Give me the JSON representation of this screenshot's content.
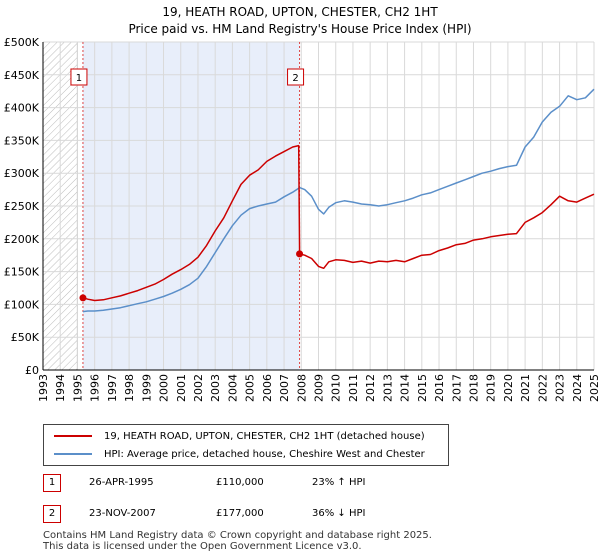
{
  "chart_data": {
    "type": "line",
    "title": "19, HEATH ROAD, UPTON, CHESTER, CH2 1HT",
    "subtitle": "Price paid vs. HM Land Registry's House Price Index (HPI)",
    "xlabel": "",
    "ylabel": "",
    "xlim": [
      1993,
      2025
    ],
    "ylim": [
      0,
      500000
    ],
    "x_tick_labels": [
      "1993",
      "1994",
      "1995",
      "1996",
      "1997",
      "1998",
      "1999",
      "2000",
      "2001",
      "2002",
      "2003",
      "2004",
      "2005",
      "2006",
      "2007",
      "2008",
      "2009",
      "2010",
      "2011",
      "2012",
      "2013",
      "2014",
      "2015",
      "2016",
      "2017",
      "2018",
      "2019",
      "2020",
      "2021",
      "2022",
      "2023",
      "2024",
      "2025"
    ],
    "y_ticks": [
      {
        "value": 0,
        "label": "£0"
      },
      {
        "value": 50000,
        "label": "£50K"
      },
      {
        "value": 100000,
        "label": "£100K"
      },
      {
        "value": 150000,
        "label": "£150K"
      },
      {
        "value": 200000,
        "label": "£200K"
      },
      {
        "value": 250000,
        "label": "£250K"
      },
      {
        "value": 300000,
        "label": "£300K"
      },
      {
        "value": 350000,
        "label": "£350K"
      },
      {
        "value": 400000,
        "label": "£400K"
      },
      {
        "value": 450000,
        "label": "£450K"
      },
      {
        "value": 500000,
        "label": "£500K"
      }
    ],
    "grid": true,
    "hatched_before": 1995.0,
    "shaded_range": [
      1995.32,
      2007.9
    ],
    "series": [
      {
        "name": "19, HEATH ROAD, UPTON, CHESTER, CH2 1HT (detached house)",
        "color": "#cc0000",
        "x": [
          1995.32,
          1995.6,
          1996.0,
          1996.5,
          1997.0,
          1997.5,
          1998.0,
          1998.5,
          1999.0,
          1999.5,
          2000.0,
          2000.5,
          2001.0,
          2001.5,
          2002.0,
          2002.5,
          2003.0,
          2003.5,
          2004.0,
          2004.5,
          2005.0,
          2005.5,
          2006.0,
          2006.5,
          2007.0,
          2007.5,
          2007.85,
          2007.9,
          2008.2,
          2008.6,
          2009.0,
          2009.3,
          2009.6,
          2010.0,
          2010.5,
          2011.0,
          2011.5,
          2012.0,
          2012.5,
          2013.0,
          2013.5,
          2014.0,
          2014.5,
          2015.0,
          2015.5,
          2016.0,
          2016.5,
          2017.0,
          2017.5,
          2018.0,
          2018.5,
          2019.0,
          2019.5,
          2020.0,
          2020.5,
          2021.0,
          2021.5,
          2022.0,
          2022.5,
          2023.0,
          2023.5,
          2024.0,
          2024.5,
          2025.0
        ],
        "values": [
          110000,
          108000,
          106000,
          107000,
          110000,
          113000,
          117000,
          121000,
          126000,
          131000,
          138000,
          146000,
          153000,
          161000,
          172000,
          190000,
          212000,
          232000,
          258000,
          283000,
          297000,
          305000,
          318000,
          326000,
          333000,
          340000,
          342000,
          177000,
          175000,
          170000,
          158000,
          155000,
          165000,
          168000,
          167000,
          164000,
          166000,
          163000,
          166000,
          165000,
          167000,
          165000,
          170000,
          175000,
          176000,
          182000,
          186000,
          191000,
          193000,
          198000,
          200000,
          203000,
          205000,
          207000,
          208000,
          225000,
          232000,
          240000,
          252000,
          265000,
          258000,
          256000,
          262000,
          268000
        ]
      },
      {
        "name": "HPI: Average price, detached house, Cheshire West and Chester",
        "color": "#5b8fc9",
        "x": [
          1995.32,
          1995.6,
          1996.0,
          1996.5,
          1997.0,
          1997.5,
          1998.0,
          1998.5,
          1999.0,
          1999.5,
          2000.0,
          2000.5,
          2001.0,
          2001.5,
          2002.0,
          2002.5,
          2003.0,
          2003.5,
          2004.0,
          2004.5,
          2005.0,
          2005.5,
          2006.0,
          2006.5,
          2007.0,
          2007.5,
          2007.9,
          2008.2,
          2008.6,
          2009.0,
          2009.3,
          2009.6,
          2010.0,
          2010.5,
          2011.0,
          2011.5,
          2012.0,
          2012.5,
          2013.0,
          2013.5,
          2014.0,
          2014.5,
          2015.0,
          2015.5,
          2016.0,
          2016.5,
          2017.0,
          2017.5,
          2018.0,
          2018.5,
          2019.0,
          2019.5,
          2020.0,
          2020.5,
          2021.0,
          2021.5,
          2022.0,
          2022.5,
          2023.0,
          2023.5,
          2024.0,
          2024.5,
          2025.0
        ],
        "values": [
          89000,
          90000,
          90000,
          91000,
          93000,
          95000,
          98000,
          101000,
          104000,
          108000,
          112000,
          117000,
          123000,
          130000,
          140000,
          158000,
          179000,
          200000,
          220000,
          236000,
          246000,
          250000,
          253000,
          256000,
          264000,
          271000,
          278000,
          275000,
          265000,
          245000,
          238000,
          248000,
          255000,
          258000,
          256000,
          253000,
          252000,
          250000,
          252000,
          255000,
          258000,
          262000,
          267000,
          270000,
          275000,
          280000,
          285000,
          290000,
          295000,
          300000,
          303000,
          307000,
          310000,
          312000,
          340000,
          355000,
          378000,
          393000,
          402000,
          418000,
          412000,
          415000,
          428000
        ]
      }
    ],
    "transactions": [
      {
        "marker": "1",
        "date": "26-APR-1995",
        "price": "£110,000",
        "hpi_change": "23% ↑ HPI",
        "x": 1995.32,
        "value": 110000
      },
      {
        "marker": "2",
        "date": "23-NOV-2007",
        "price": "£177,000",
        "hpi_change": "36% ↓ HPI",
        "x": 2007.9,
        "value": 177000
      }
    ]
  },
  "legend": {
    "items": [
      {
        "label": "19, HEATH ROAD, UPTON, CHESTER, CH2 1HT (detached house)",
        "color": "#cc0000"
      },
      {
        "label": "HPI: Average price, detached house, Cheshire West and Chester",
        "color": "#5b8fc9"
      }
    ]
  },
  "footer": {
    "line1": "Contains HM Land Registry data © Crown copyright and database right 2025.",
    "line2": "This data is licensed under the Open Government Licence v3.0."
  }
}
